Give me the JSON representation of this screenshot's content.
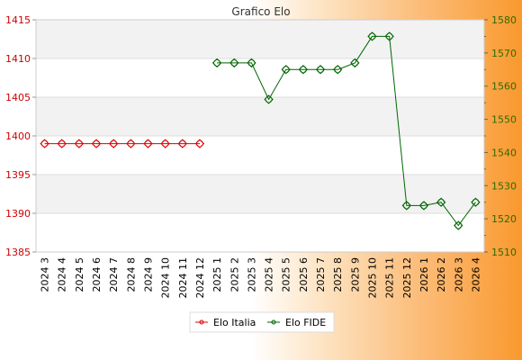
{
  "chart_data": {
    "type": "line",
    "title": "Grafico Elo",
    "categories": [
      "2024 3",
      "2024 4",
      "2024 5",
      "2024 6",
      "2024 7",
      "2024 8",
      "2024 9",
      "2024 10",
      "2024 11",
      "2024 12",
      "2025 1",
      "2025 2",
      "2025 3",
      "2025 4",
      "2025 5",
      "2025 6",
      "2025 7",
      "2025 8",
      "2025 9",
      "2025 10",
      "2025 11",
      "2025 12",
      "2026 1",
      "2026 2",
      "2026 3",
      "2026 4"
    ],
    "y_left": {
      "min": 1385,
      "max": 1415,
      "ticks": [
        1385,
        1390,
        1395,
        1400,
        1405,
        1410,
        1415
      ],
      "color": "#d00000"
    },
    "y_right": {
      "min": 1510,
      "max": 1580,
      "ticks": [
        1510,
        1520,
        1530,
        1540,
        1550,
        1560,
        1570,
        1580
      ],
      "color": "#2e6b00"
    },
    "series": [
      {
        "name": "Elo Italia",
        "axis": "left",
        "color": "#dd0000",
        "values": [
          1399,
          1399,
          1399,
          1399,
          1399,
          1399,
          1399,
          1399,
          1399,
          1399,
          null,
          null,
          null,
          null,
          null,
          null,
          null,
          null,
          null,
          null,
          null,
          null,
          null,
          null,
          null,
          null
        ]
      },
      {
        "name": "Elo FIDE",
        "axis": "right",
        "color": "#006600",
        "values": [
          null,
          null,
          null,
          null,
          null,
          null,
          null,
          null,
          null,
          null,
          1567,
          1567,
          1567,
          1556,
          1565,
          1565,
          1565,
          1565,
          1567,
          1575,
          1575,
          1524,
          1524,
          1525,
          1518,
          1525
        ]
      }
    ],
    "legend": "bottom-center",
    "grid": true
  }
}
